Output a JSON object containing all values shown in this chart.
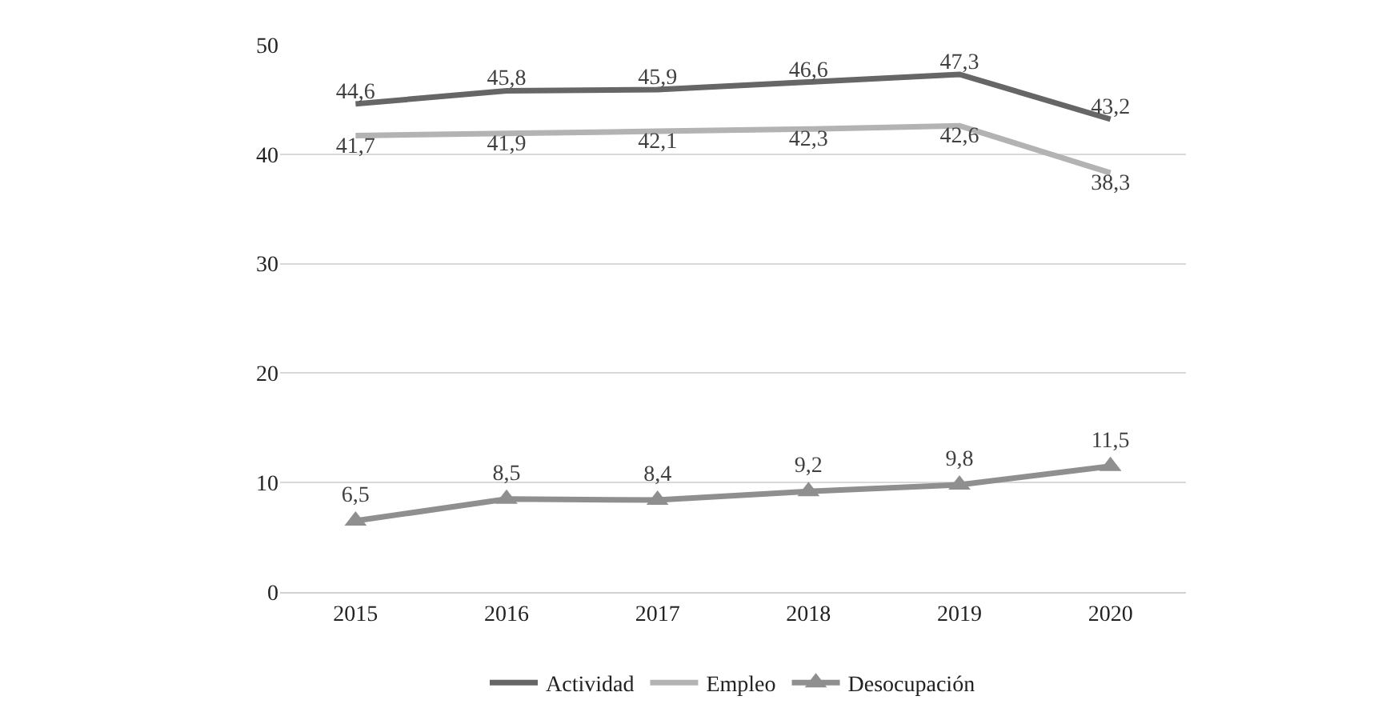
{
  "chart_data": {
    "type": "line",
    "categories": [
      "2015",
      "2016",
      "2017",
      "2018",
      "2019",
      "2020"
    ],
    "series": [
      {
        "name": "Actividad",
        "color": "#666666",
        "values": [
          44.6,
          45.8,
          45.9,
          46.6,
          47.3,
          43.2
        ],
        "value_labels": [
          "44,6",
          "45,8",
          "45,9",
          "46,6",
          "47,3",
          "43,2"
        ],
        "marker": "none"
      },
      {
        "name": "Empleo",
        "color": "#b3b3b3",
        "values": [
          41.7,
          41.9,
          42.1,
          42.3,
          42.6,
          38.3
        ],
        "value_labels": [
          "41,7",
          "41,9",
          "42,1",
          "42,3",
          "42,6",
          "38,3"
        ],
        "marker": "none"
      },
      {
        "name": "Desocupación",
        "color": "#8f8f8f",
        "values": [
          6.5,
          8.5,
          8.4,
          9.2,
          9.8,
          11.5
        ],
        "value_labels": [
          "6,5",
          "8,5",
          "8,4",
          "9,2",
          "9,8",
          "11,5"
        ],
        "marker": "triangle"
      }
    ],
    "ylim": [
      0,
      50
    ],
    "yticks": [
      0,
      10,
      20,
      30,
      40,
      50
    ],
    "grid": "y",
    "legend": "bottom",
    "line_style": "solid"
  }
}
